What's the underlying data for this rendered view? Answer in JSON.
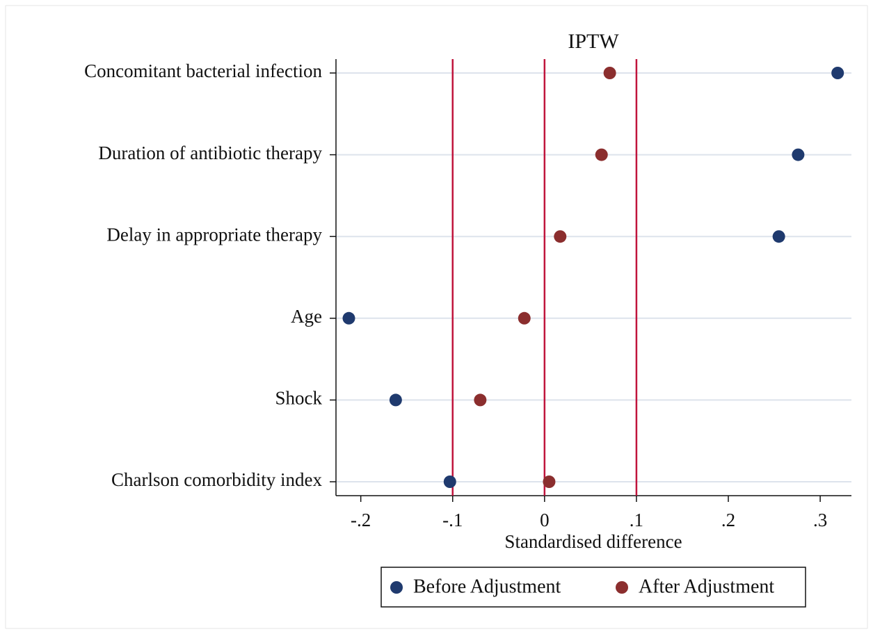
{
  "chart_data": {
    "type": "dot",
    "title": "IPTW",
    "xlabel": "Standardised difference",
    "categories": [
      "Concomitant bacterial infection",
      "Duration of antibiotic therapy",
      "Delay in appropriate therapy",
      "Age",
      "Shock",
      "Charlson comorbidity index"
    ],
    "series": [
      {
        "name": "Before Adjustment",
        "color": "#1f3a6e",
        "values": [
          0.319,
          0.276,
          0.255,
          -0.213,
          -0.162,
          -0.103
        ]
      },
      {
        "name": "After Adjustment",
        "color": "#8b2e2e",
        "values": [
          0.071,
          0.062,
          0.017,
          -0.022,
          -0.07,
          0.005
        ]
      }
    ],
    "xlim": [
      -0.227,
      0.334
    ],
    "xticks": [
      {
        "value": -0.2,
        "label": "-.2"
      },
      {
        "value": -0.1,
        "label": "-.1"
      },
      0,
      {
        "value": 0.1,
        "label": ".1"
      },
      {
        "value": 0.2,
        "label": ".2"
      },
      {
        "value": 0.3,
        "label": ".3"
      }
    ],
    "reference_lines": [
      -0.1,
      0,
      0.1
    ],
    "reference_color": "#c0143c",
    "grid": true,
    "legend": "bottom"
  }
}
